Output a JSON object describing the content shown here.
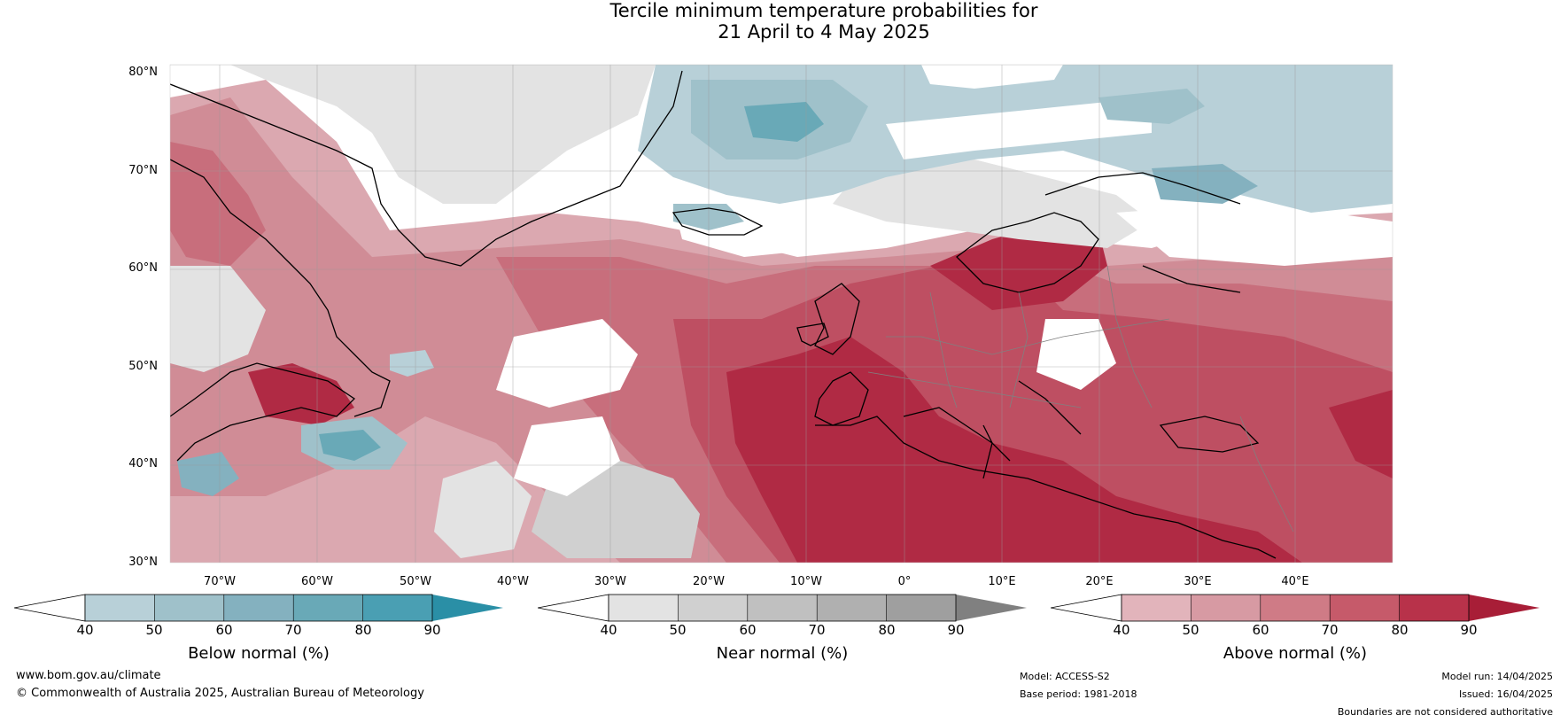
{
  "title": {
    "line1": "Tercile minimum temperature probabilities for",
    "line2": "21 April to 4 May 2025"
  },
  "map": {
    "lat_labels": [
      "80°N",
      "70°N",
      "60°N",
      "50°N",
      "40°N",
      "30°N"
    ],
    "lon_labels": [
      "70°W",
      "60°W",
      "50°W",
      "40°W",
      "30°W",
      "20°W",
      "10°W",
      "0°",
      "10°E",
      "20°E",
      "30°E",
      "40°E"
    ],
    "colors": {
      "below": [
        "#b8d0d8",
        "#9fc1ca",
        "#84b1bf",
        "#69a9b7",
        "#4a9fb3",
        "#2a8fa6"
      ],
      "near": [
        "#e3e3e3",
        "#d0d0d0",
        "#c0c0c0",
        "#b0b0b0",
        "#9f9f9f",
        "#808080"
      ],
      "above": [
        "#e2b4bb",
        "#d79aa3",
        "#cf7b86",
        "#c65a6a",
        "#b8324a",
        "#a81e37"
      ],
      "coast": "#000000",
      "border": "#808080"
    }
  },
  "colorbars": [
    {
      "label": "Below normal (%)",
      "ticks": [
        "40",
        "50",
        "60",
        "70",
        "80",
        "90"
      ]
    },
    {
      "label": "Near normal (%)",
      "ticks": [
        "40",
        "50",
        "60",
        "70",
        "80",
        "90"
      ]
    },
    {
      "label": "Above normal (%)",
      "ticks": [
        "40",
        "50",
        "60",
        "70",
        "80",
        "90"
      ]
    }
  ],
  "footer": {
    "url": "www.bom.gov.au/climate",
    "copyright": "© Commonwealth of Australia 2025, Australian Bureau of Meteorology",
    "model": "Model: ACCESS-S2",
    "base_period": "Base period: 1981-2018",
    "model_run": "Model run: 14/04/2025",
    "issued": "Issued: 16/04/2025",
    "disclaimer": "Boundaries are not considered authoritative"
  }
}
